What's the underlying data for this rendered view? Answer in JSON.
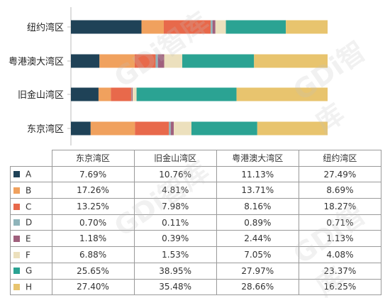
{
  "chart_data": {
    "type": "bar",
    "orientation": "horizontal",
    "stacked": "percent",
    "categories": [
      "纽约湾区",
      "粤港澳大湾区",
      "旧金山湾区",
      "东京湾区"
    ],
    "series": [
      {
        "name": "A",
        "color": "#1f4257",
        "values": [
          27.49,
          11.13,
          10.76,
          7.69
        ]
      },
      {
        "name": "B",
        "color": "#f0a15e",
        "values": [
          8.69,
          13.71,
          4.81,
          17.26
        ]
      },
      {
        "name": "C",
        "color": "#e8694b",
        "values": [
          18.27,
          8.16,
          7.98,
          13.25
        ]
      },
      {
        "name": "D",
        "color": "#8fb4ba",
        "values": [
          0.71,
          0.89,
          0.11,
          0.7
        ]
      },
      {
        "name": "E",
        "color": "#a0607d",
        "values": [
          1.13,
          2.44,
          0.39,
          1.18
        ]
      },
      {
        "name": "F",
        "color": "#ece0bd",
        "values": [
          4.08,
          7.05,
          1.53,
          6.88
        ]
      },
      {
        "name": "G",
        "color": "#2ba393",
        "values": [
          23.37,
          27.97,
          38.95,
          25.65
        ]
      },
      {
        "name": "H",
        "color": "#e8c46e",
        "values": [
          16.25,
          28.66,
          35.48,
          27.4
        ]
      }
    ],
    "xlim": [
      0,
      100
    ],
    "grid": false,
    "table": {
      "columns": [
        "东京湾区",
        "旧金山湾区",
        "粤港澳大湾区",
        "纽约湾区"
      ],
      "rows": [
        {
          "name": "A",
          "values": [
            "7.69%",
            "10.76%",
            "11.13%",
            "27.49%"
          ]
        },
        {
          "name": "B",
          "values": [
            "17.26%",
            "4.81%",
            "13.71%",
            "8.69%"
          ]
        },
        {
          "name": "C",
          "values": [
            "13.25%",
            "7.98%",
            "8.16%",
            "18.27%"
          ]
        },
        {
          "name": "D",
          "values": [
            "0.70%",
            "0.11%",
            "0.89%",
            "0.71%"
          ]
        },
        {
          "name": "E",
          "values": [
            "1.18%",
            "0.39%",
            "2.44%",
            "1.13%"
          ]
        },
        {
          "name": "F",
          "values": [
            "6.88%",
            "1.53%",
            "7.05%",
            "4.08%"
          ]
        },
        {
          "name": "G",
          "values": [
            "25.65%",
            "38.95%",
            "27.97%",
            "23.37%"
          ]
        },
        {
          "name": "H",
          "values": [
            "27.40%",
            "35.48%",
            "28.66%",
            "16.25%"
          ]
        }
      ]
    }
  },
  "watermark": "GDi智库"
}
